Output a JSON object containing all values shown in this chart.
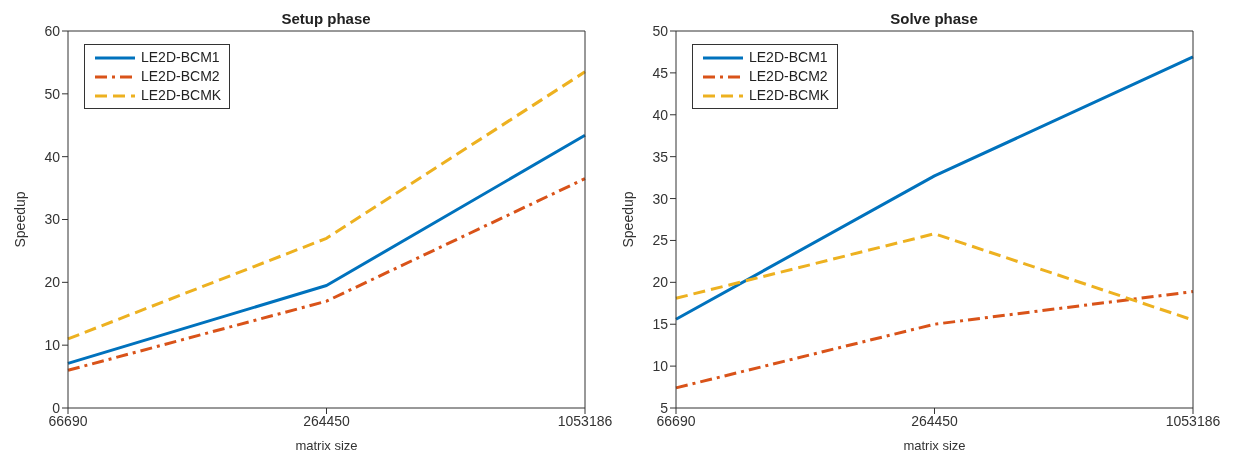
{
  "chart_data": [
    {
      "type": "line",
      "title": "Setup phase",
      "xlabel": "matrix size",
      "ylabel": "Speedup",
      "categories": [
        "66690",
        "264450",
        "1053186"
      ],
      "ylim": [
        0,
        60
      ],
      "yticks": [
        0,
        10,
        20,
        30,
        40,
        50,
        60
      ],
      "legend": "top left",
      "grid": false,
      "marker": "none",
      "series": [
        {
          "name": "LE2D-BCM1",
          "color": "#0072bd",
          "line_style": "solid",
          "values": [
            7.1,
            19.5,
            43.4
          ]
        },
        {
          "name": "LE2D-BCM2",
          "color": "#d95319",
          "line_style": "dashdot",
          "values": [
            6.0,
            17.0,
            36.5
          ]
        },
        {
          "name": "LE2D-BCMK",
          "color": "#edb120",
          "line_style": "dashed",
          "values": [
            11.0,
            27.0,
            53.5
          ]
        }
      ]
    },
    {
      "type": "line",
      "title": "Solve phase",
      "xlabel": "matrix size",
      "ylabel": "Speedup",
      "categories": [
        "66690",
        "264450",
        "1053186"
      ],
      "ylim": [
        5,
        50
      ],
      "yticks": [
        5,
        10,
        15,
        20,
        25,
        30,
        35,
        40,
        45,
        50
      ],
      "legend": "top left",
      "grid": false,
      "marker": "none",
      "series": [
        {
          "name": "LE2D-BCM1",
          "color": "#0072bd",
          "line_style": "solid",
          "values": [
            15.6,
            32.7,
            46.9
          ]
        },
        {
          "name": "LE2D-BCM2",
          "color": "#d95319",
          "line_style": "dashdot",
          "values": [
            7.4,
            15.0,
            18.9
          ]
        },
        {
          "name": "LE2D-BCMK",
          "color": "#edb120",
          "line_style": "dashed",
          "values": [
            18.1,
            25.8,
            15.5
          ]
        }
      ]
    }
  ]
}
